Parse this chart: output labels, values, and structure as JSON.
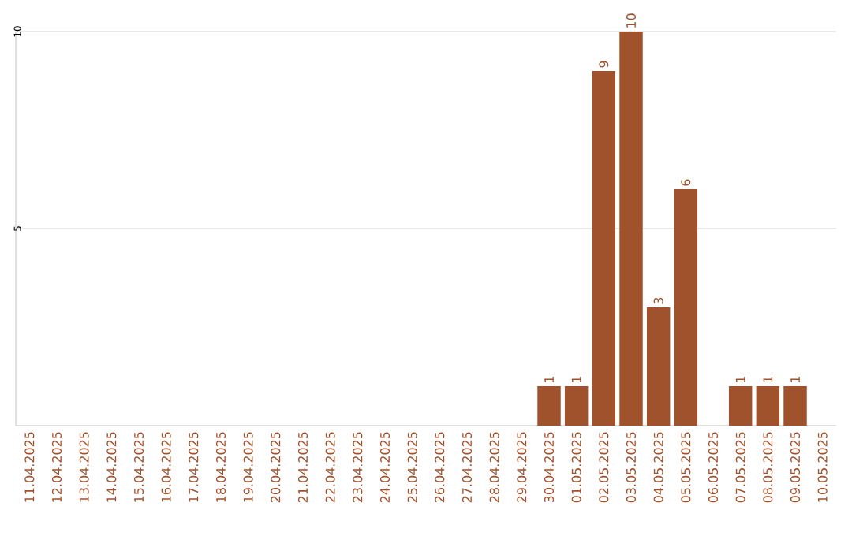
{
  "chart_data": {
    "type": "bar",
    "categories": [
      "11.04.2025",
      "12.04.2025",
      "13.04.2025",
      "14.04.2025",
      "15.04.2025",
      "16.04.2025",
      "17.04.2025",
      "18.04.2025",
      "19.04.2025",
      "20.04.2025",
      "21.04.2025",
      "22.04.2025",
      "23.04.2025",
      "24.04.2025",
      "25.04.2025",
      "26.04.2025",
      "27.04.2025",
      "28.04.2025",
      "29.04.2025",
      "30.04.2025",
      "01.05.2025",
      "02.05.2025",
      "03.05.2025",
      "04.05.2025",
      "05.05.2025",
      "06.05.2025",
      "07.05.2025",
      "08.05.2025",
      "09.05.2025",
      "10.05.2025"
    ],
    "values": [
      0,
      0,
      0,
      0,
      0,
      0,
      0,
      0,
      0,
      0,
      0,
      0,
      0,
      0,
      0,
      0,
      0,
      0,
      0,
      1,
      1,
      9,
      10,
      3,
      6,
      0,
      1,
      1,
      1,
      0
    ],
    "value_labels": [
      null,
      null,
      null,
      null,
      null,
      null,
      null,
      null,
      null,
      null,
      null,
      null,
      null,
      null,
      null,
      null,
      null,
      null,
      null,
      "1",
      "1",
      "9",
      "10",
      "3",
      "6",
      null,
      "1",
      "1",
      "1",
      null
    ],
    "color": "#a0522d",
    "ylim": [
      0,
      10
    ],
    "yticks": [
      5,
      10
    ],
    "grid": "y"
  }
}
